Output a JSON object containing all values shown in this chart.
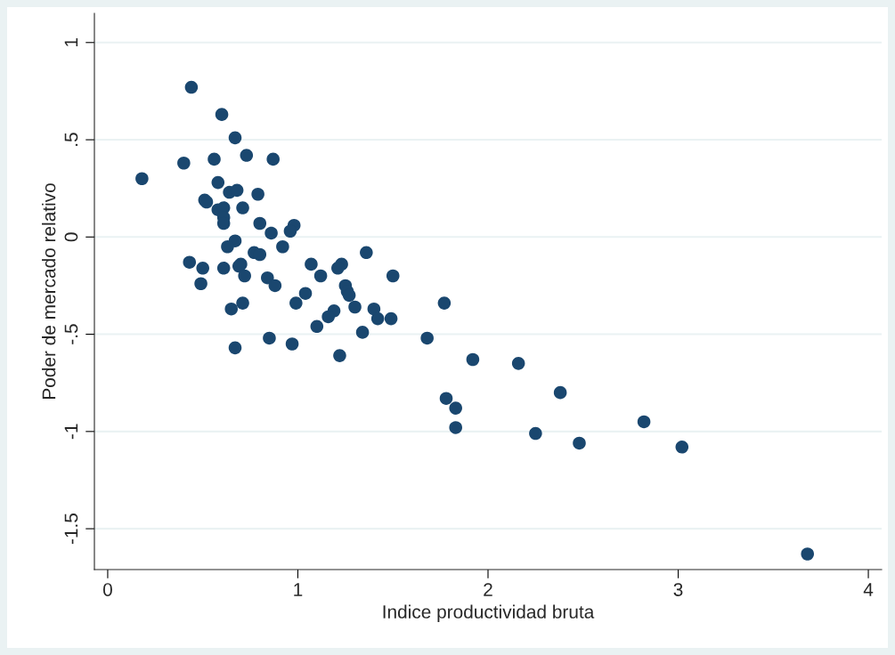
{
  "chart_data": {
    "type": "scatter",
    "xlabel": "Indice productividad bruta",
    "ylabel": "Poder de mercado relativo",
    "x": [
      0.18,
      0.44,
      0.4,
      0.6,
      0.67,
      0.56,
      0.73,
      0.87,
      0.58,
      0.51,
      0.52,
      0.64,
      0.68,
      0.79,
      0.58,
      0.61,
      0.71,
      0.61,
      0.61,
      0.8,
      0.98,
      0.96,
      0.86,
      0.67,
      0.63,
      0.92,
      0.77,
      0.8,
      1.36,
      0.43,
      0.5,
      0.7,
      0.69,
      0.61,
      1.07,
      1.23,
      1.21,
      0.72,
      0.84,
      1.12,
      1.5,
      0.49,
      0.88,
      1.25,
      1.26,
      1.04,
      1.27,
      0.71,
      0.99,
      0.65,
      1.3,
      1.77,
      1.4,
      1.19,
      1.16,
      1.42,
      1.49,
      1.1,
      1.34,
      0.85,
      1.68,
      0.97,
      0.67,
      1.22,
      1.92,
      2.16,
      2.38,
      1.78,
      1.83,
      2.82,
      1.83,
      2.25,
      2.48,
      3.02,
      3.68
    ],
    "series": [
      {
        "color": "#1a476f",
        "values": [
          0.3,
          0.77,
          0.38,
          0.63,
          0.51,
          0.4,
          0.42,
          0.4,
          0.28,
          0.19,
          0.18,
          0.23,
          0.24,
          0.22,
          0.14,
          0.15,
          0.15,
          0.1,
          0.07,
          0.07,
          0.06,
          0.03,
          0.02,
          -0.02,
          -0.05,
          -0.05,
          -0.08,
          -0.09,
          -0.08,
          -0.13,
          -0.16,
          -0.14,
          -0.15,
          -0.16,
          -0.14,
          -0.14,
          -0.16,
          -0.2,
          -0.21,
          -0.2,
          -0.2,
          -0.24,
          -0.25,
          -0.25,
          -0.28,
          -0.29,
          -0.3,
          -0.34,
          -0.34,
          -0.37,
          -0.36,
          -0.34,
          -0.37,
          -0.38,
          -0.41,
          -0.42,
          -0.42,
          -0.46,
          -0.49,
          -0.52,
          -0.52,
          -0.55,
          -0.57,
          -0.61,
          -0.63,
          -0.65,
          -0.8,
          -0.83,
          -0.88,
          -0.95,
          -0.98,
          -1.01,
          -1.06,
          -1.08,
          -1.63
        ]
      }
    ],
    "xlim": [
      -0.07,
      4.07
    ],
    "ylim": [
      -1.71,
      1.15
    ],
    "xticks": [
      0,
      1,
      2,
      3,
      4
    ],
    "yticks": [
      {
        "value": -1.5,
        "label": "-1.5"
      },
      {
        "value": -1,
        "label": "-1"
      },
      {
        "value": -0.5,
        "label": "-.5"
      },
      {
        "value": 0,
        "label": "0"
      },
      {
        "value": 0.5,
        "label": ".5"
      },
      {
        "value": 1,
        "label": "1"
      }
    ],
    "grid": "y",
    "marker": "circle",
    "legend": false
  }
}
